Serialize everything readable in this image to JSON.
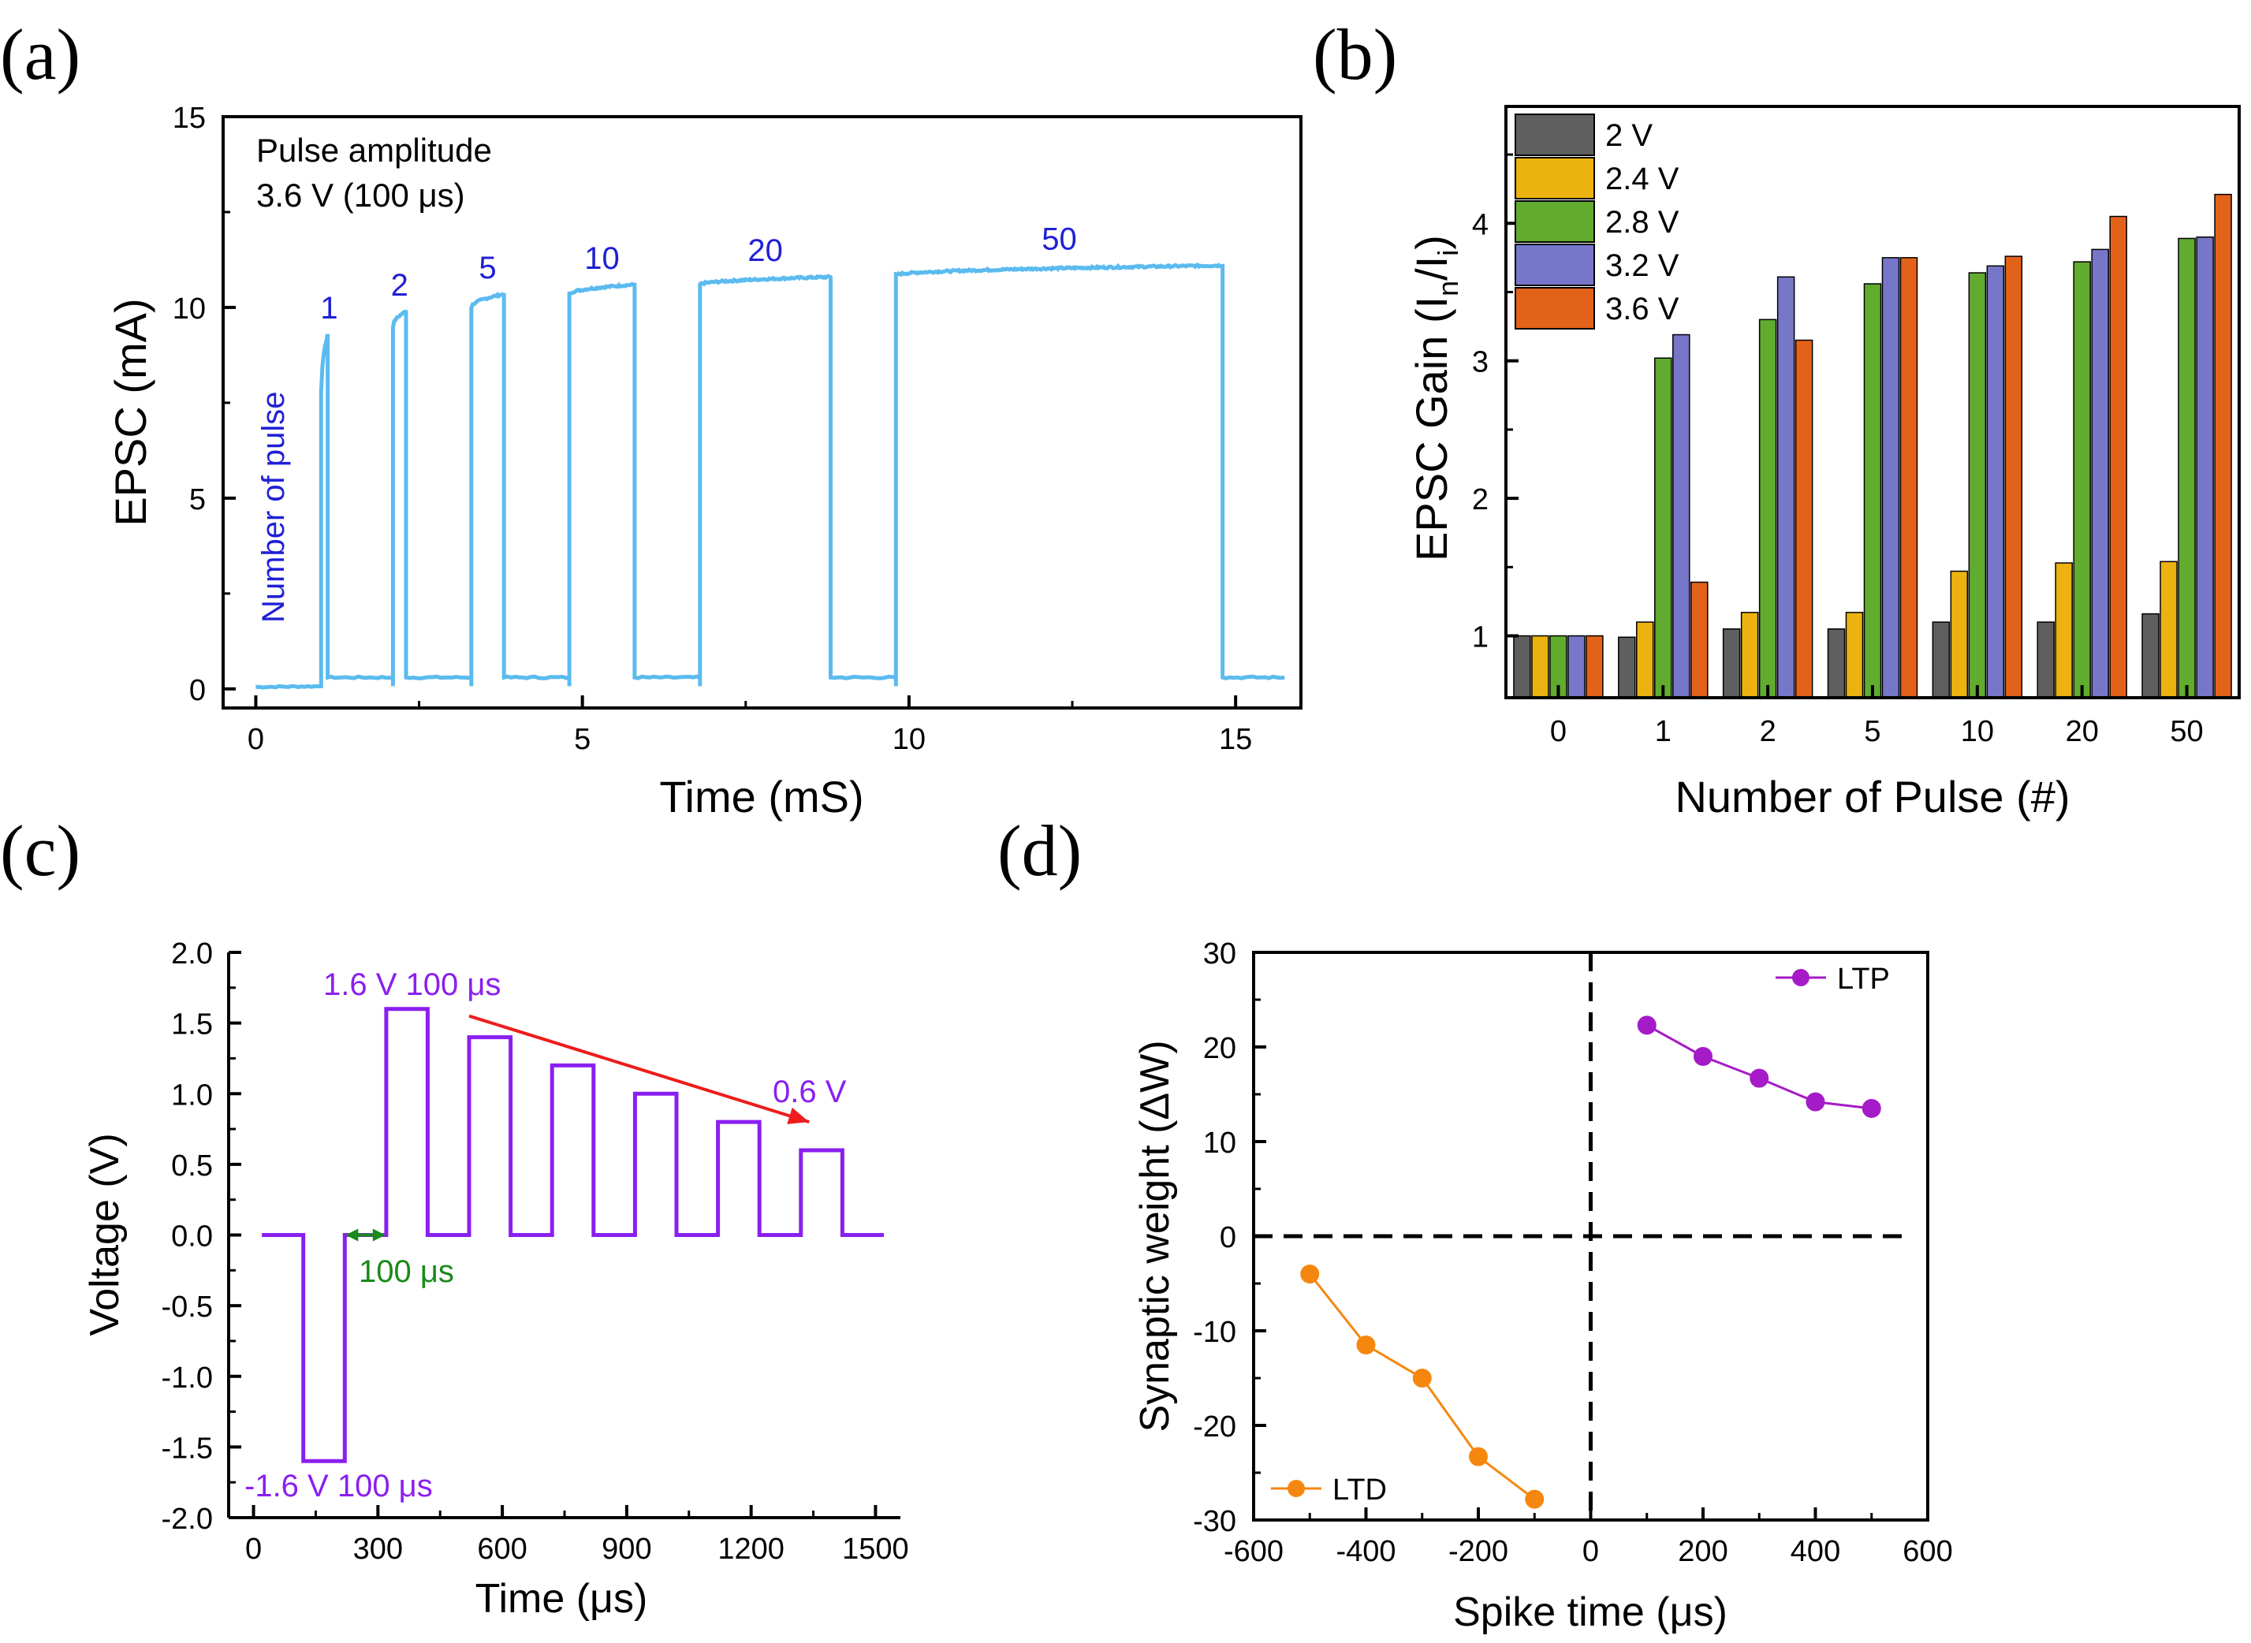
{
  "chart_data": [
    {
      "panel": "(a)",
      "type": "line",
      "xlabel": "Time (mS)",
      "ylabel": "EPSC (mA)",
      "xlim": [
        -0.5,
        16
      ],
      "ylim": [
        -0.5,
        15
      ],
      "xticks": [
        0,
        5,
        10,
        15
      ],
      "yticks": [
        0,
        5,
        10,
        15
      ],
      "annotation": [
        "Pulse amplitude",
        "3.6 V (100 μs)"
      ],
      "side_label": "Number of pulse",
      "line_color": "#5bbbef",
      "label_color": "#1f1fd6",
      "pulses": [
        {
          "label": "1",
          "start": 1.0,
          "end": 1.1,
          "rise_start": 7.8,
          "peak": 9.3
        },
        {
          "label": "2",
          "start": 2.1,
          "end": 2.3,
          "rise_start": 9.5,
          "peak": 9.9
        },
        {
          "label": "5",
          "start": 3.3,
          "end": 3.8,
          "rise_start": 10.0,
          "peak": 10.35
        },
        {
          "label": "10",
          "start": 4.8,
          "end": 5.8,
          "rise_start": 10.35,
          "peak": 10.6
        },
        {
          "label": "20",
          "start": 6.8,
          "end": 8.8,
          "rise_start": 10.6,
          "peak": 10.8
        },
        {
          "label": "50",
          "start": 9.8,
          "end": 14.8,
          "rise_start": 10.85,
          "peak": 11.1
        }
      ],
      "baseline_start": 0.05,
      "baseline": 0.3,
      "baseline_end": 0.35,
      "x_end": 15.8
    },
    {
      "panel": "(b)",
      "type": "bar",
      "xlabel": "Number of Pulse (#)",
      "ylabel": "EPSC Gain (I",
      "ylabel_sub1": "n",
      "ylabel_mid": "/I",
      "ylabel_sub2": "i",
      "ylabel_end": ")",
      "ylim": [
        0.55,
        4.85
      ],
      "yticks": [
        1,
        2,
        3,
        4
      ],
      "categories": [
        "0",
        "1",
        "2",
        "5",
        "10",
        "20",
        "50"
      ],
      "series": [
        {
          "name": "2 V",
          "color": "#5f5f5f",
          "values": [
            1.0,
            0.99,
            1.05,
            1.05,
            1.1,
            1.1,
            1.16
          ]
        },
        {
          "name": "2.4 V",
          "color": "#ecb20f",
          "values": [
            1.0,
            1.1,
            1.17,
            1.17,
            1.47,
            1.53,
            1.54
          ]
        },
        {
          "name": "2.8 V",
          "color": "#61ab2f",
          "values": [
            1.0,
            3.02,
            3.3,
            3.56,
            3.64,
            3.72,
            3.89
          ]
        },
        {
          "name": "3.2 V",
          "color": "#7777c9",
          "values": [
            1.0,
            3.19,
            3.61,
            3.75,
            3.69,
            3.81,
            3.9
          ]
        },
        {
          "name": "3.6 V",
          "color": "#e3621a",
          "values": [
            1.0,
            1.39,
            3.15,
            3.75,
            3.76,
            4.05,
            4.21
          ]
        }
      ]
    },
    {
      "panel": "(c)",
      "type": "line",
      "xlabel": "Time (μs)",
      "ylabel": "Voltage (V)",
      "xlim": [
        -60,
        1560
      ],
      "ylim": [
        -2.0,
        2.0
      ],
      "xticks": [
        0,
        300,
        600,
        900,
        1200,
        1500
      ],
      "yticks": [
        "-2.0",
        "-1.5",
        "-1.0",
        "-0.5",
        "0.0",
        "0.5",
        "1.0",
        "1.5",
        "2.0"
      ],
      "line_color": "#8a1ff0",
      "points": [
        [
          20,
          0
        ],
        [
          120,
          0
        ],
        [
          120,
          -1.6
        ],
        [
          220,
          -1.6
        ],
        [
          220,
          0
        ],
        [
          320,
          0
        ],
        [
          320,
          1.6
        ],
        [
          420,
          1.6
        ],
        [
          420,
          0
        ],
        [
          520,
          0
        ],
        [
          520,
          1.4
        ],
        [
          620,
          1.4
        ],
        [
          620,
          0
        ],
        [
          720,
          0
        ],
        [
          720,
          1.2
        ],
        [
          820,
          1.2
        ],
        [
          820,
          0
        ],
        [
          920,
          0
        ],
        [
          920,
          1.0
        ],
        [
          1020,
          1.0
        ],
        [
          1020,
          0
        ],
        [
          1120,
          0
        ],
        [
          1120,
          0.8
        ],
        [
          1220,
          0.8
        ],
        [
          1220,
          0
        ],
        [
          1320,
          0
        ],
        [
          1320,
          0.6
        ],
        [
          1420,
          0.6
        ],
        [
          1420,
          0
        ],
        [
          1520,
          0
        ]
      ],
      "annotations": {
        "top": "1.6 V 100 μs",
        "bottom": "-1.6 V 100 μs",
        "end": "0.6 V",
        "gap": "100 μs"
      },
      "arrow_color": "#ee1c1c",
      "gap_color": "#1a8a1a"
    },
    {
      "panel": "(d)",
      "type": "scatter",
      "xlabel": "Spike time (μs)",
      "ylabel": "Synaptic weight (ΔW)",
      "xlim": [
        -600,
        600
      ],
      "ylim": [
        -30,
        30
      ],
      "xticks": [
        -600,
        -400,
        -200,
        0,
        200,
        400,
        600
      ],
      "yticks": [
        -30,
        -20,
        -10,
        0,
        10,
        20,
        30
      ],
      "series": [
        {
          "name": "LTP",
          "color": "#a51bc7",
          "x": [
            100,
            200,
            300,
            400,
            500
          ],
          "y": [
            22.3,
            19.0,
            16.7,
            14.2,
            13.5
          ]
        },
        {
          "name": "LTD",
          "color": "#f5870f",
          "x": [
            -500,
            -400,
            -300,
            -200,
            -100
          ],
          "y": [
            -4.0,
            -11.5,
            -15.0,
            -23.3,
            -27.8
          ]
        }
      ]
    }
  ]
}
